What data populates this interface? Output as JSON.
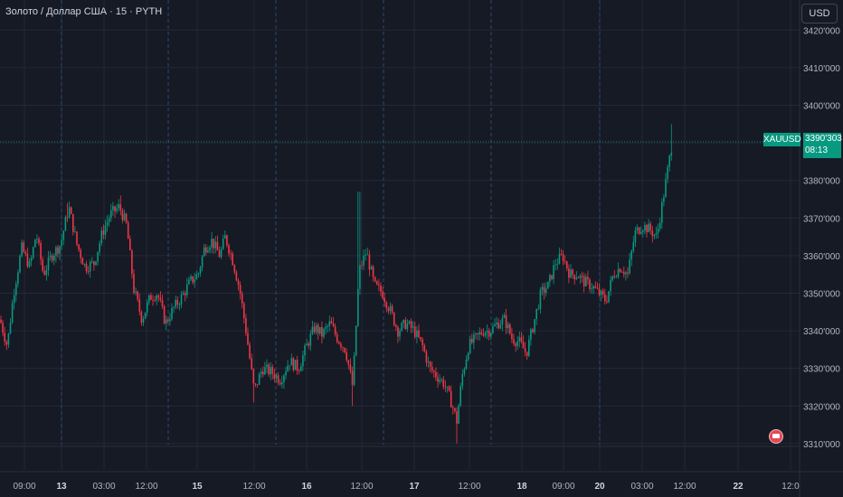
{
  "legend": {
    "title": "Золото / Доллар США · 15 · PYTH"
  },
  "currency_button": "USD",
  "last_price": {
    "symbol": "XAUUSD",
    "price": "3390'303",
    "countdown": "08:13"
  },
  "colors": {
    "background": "#161a25",
    "up": "#089981",
    "down": "#f23645",
    "grid": "#242837",
    "session_line": "#2a4a6b",
    "text": "#b2b5be"
  },
  "icons": {
    "bottom_right_badge": "settings-icon"
  },
  "chart_data": {
    "type": "candlestick",
    "title": "Золото / Доллар США · 15 · PYTH",
    "ylim": [
      3303,
      3428
    ],
    "y_ticks": [
      3310,
      3320,
      3330,
      3340,
      3350,
      3360,
      3370,
      3380,
      3390,
      3400,
      3410,
      3420
    ],
    "y_tick_labels": [
      "3310'000",
      "3320'000",
      "3330'000",
      "3340'000",
      "3350'000",
      "3360'000",
      "3370'000",
      "3380'000",
      "3390'000",
      "3400'000",
      "3410'000",
      "3420'000"
    ],
    "x_ticks": [
      {
        "label": "09:00",
        "x": 27
      },
      {
        "label": "13",
        "x": 68
      },
      {
        "label": "03:00",
        "x": 115
      },
      {
        "label": "12:00",
        "x": 162
      },
      {
        "label": "15",
        "x": 218
      },
      {
        "label": "12:00",
        "x": 281
      },
      {
        "label": "16",
        "x": 339
      },
      {
        "label": "12:00",
        "x": 400
      },
      {
        "label": "17",
        "x": 458
      },
      {
        "label": "12:00",
        "x": 519
      },
      {
        "label": "18",
        "x": 577
      },
      {
        "label": "09:00",
        "x": 623
      },
      {
        "label": "20",
        "x": 663
      },
      {
        "label": "03:00",
        "x": 710
      },
      {
        "label": "12:00",
        "x": 757
      },
      {
        "label": "22",
        "x": 816
      },
      {
        "label": "12:0",
        "x": 874
      }
    ],
    "session_breaks_x": [
      68,
      186,
      305,
      424,
      543,
      663
    ],
    "last_price": 3390.303,
    "anchors": [
      [
        0,
        3343
      ],
      [
        8,
        3336
      ],
      [
        15,
        3350
      ],
      [
        24,
        3362
      ],
      [
        33,
        3357
      ],
      [
        40,
        3366
      ],
      [
        48,
        3355
      ],
      [
        57,
        3360
      ],
      [
        67,
        3363
      ],
      [
        76,
        3373
      ],
      [
        85,
        3363
      ],
      [
        94,
        3357
      ],
      [
        104,
        3358
      ],
      [
        113,
        3366
      ],
      [
        122,
        3371
      ],
      [
        132,
        3373
      ],
      [
        140,
        3368
      ],
      [
        148,
        3351
      ],
      [
        157,
        3343
      ],
      [
        166,
        3349
      ],
      [
        174,
        3350
      ],
      [
        183,
        3342
      ],
      [
        192,
        3346
      ],
      [
        201,
        3349
      ],
      [
        210,
        3353
      ],
      [
        219,
        3355
      ],
      [
        226,
        3362
      ],
      [
        234,
        3364
      ],
      [
        243,
        3360
      ],
      [
        249,
        3365
      ],
      [
        257,
        3359
      ],
      [
        265,
        3351
      ],
      [
        272,
        3340
      ],
      [
        281,
        3324
      ],
      [
        290,
        3330
      ],
      [
        300,
        3329
      ],
      [
        310,
        3327
      ],
      [
        320,
        3332
      ],
      [
        330,
        3330
      ],
      [
        339,
        3336
      ],
      [
        348,
        3341
      ],
      [
        356,
        3339
      ],
      [
        365,
        3342
      ],
      [
        373,
        3338
      ],
      [
        382,
        3335
      ],
      [
        390,
        3325
      ],
      [
        397,
        3356
      ],
      [
        405,
        3361
      ],
      [
        414,
        3352
      ],
      [
        423,
        3350
      ],
      [
        432,
        3345
      ],
      [
        440,
        3340
      ],
      [
        449,
        3342
      ],
      [
        458,
        3340
      ],
      [
        467,
        3336
      ],
      [
        475,
        3330
      ],
      [
        483,
        3328
      ],
      [
        491,
        3326
      ],
      [
        499,
        3321
      ],
      [
        505,
        3316
      ],
      [
        511,
        3328
      ],
      [
        518,
        3336
      ],
      [
        526,
        3338
      ],
      [
        534,
        3340
      ],
      [
        542,
        3340
      ],
      [
        550,
        3342
      ],
      [
        558,
        3343
      ],
      [
        566,
        3338
      ],
      [
        574,
        3337
      ],
      [
        582,
        3334
      ],
      [
        590,
        3342
      ],
      [
        598,
        3350
      ],
      [
        606,
        3352
      ],
      [
        614,
        3358
      ],
      [
        622,
        3360
      ],
      [
        630,
        3355
      ],
      [
        638,
        3355
      ],
      [
        646,
        3353
      ],
      [
        654,
        3352
      ],
      [
        662,
        3350
      ],
      [
        670,
        3348
      ],
      [
        678,
        3355
      ],
      [
        686,
        3357
      ],
      [
        694,
        3355
      ],
      [
        702,
        3366
      ],
      [
        710,
        3368
      ],
      [
        718,
        3367
      ],
      [
        726,
        3365
      ],
      [
        733,
        3375
      ],
      [
        739,
        3384
      ],
      [
        743,
        3390
      ]
    ]
  }
}
